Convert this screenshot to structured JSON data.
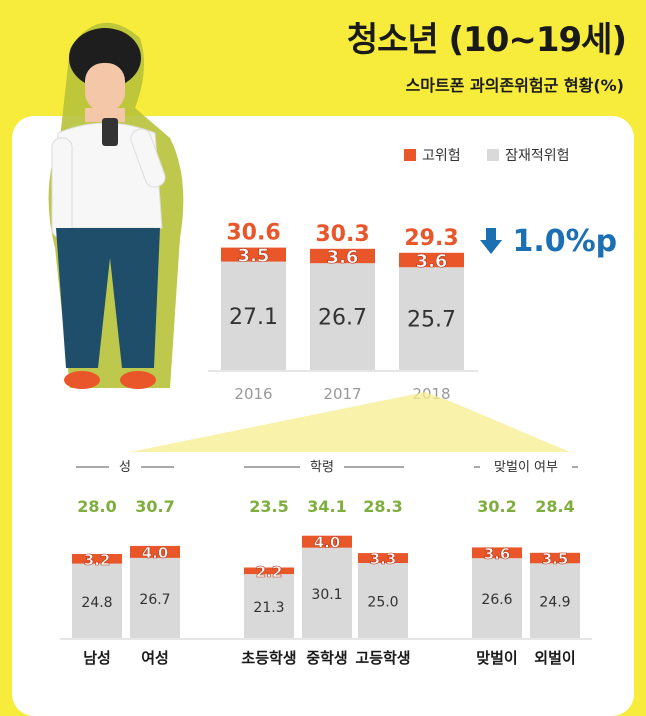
{
  "header": {
    "title": "청소년 (10~19세)",
    "subtitle": "스마트폰 과의존위험군 현황(%)"
  },
  "legend": {
    "items": [
      {
        "label": "고위험",
        "color": "#E8562A"
      },
      {
        "label": "잠재적위험",
        "color": "#D9D9D9"
      }
    ]
  },
  "trend": {
    "label": "1.0%p",
    "direction": "down",
    "color": "#1B6FB3"
  },
  "colors": {
    "high": "#E8562A",
    "potential": "#D9D9D9",
    "total": "#7FAE3E",
    "yearTotal": "#E8562A"
  },
  "chart_data": [
    {
      "type": "bar",
      "stacked": true,
      "categories": [
        "2016",
        "2017",
        "2018"
      ],
      "series": [
        {
          "name": "잠재적위험",
          "values": [
            27.1,
            26.7,
            25.7
          ]
        },
        {
          "name": "고위험",
          "values": [
            3.5,
            3.6,
            3.6
          ]
        }
      ],
      "totals": [
        30.6,
        30.3,
        29.3
      ]
    },
    {
      "type": "bar",
      "stacked": true,
      "groups": [
        {
          "label": "성",
          "categories": [
            "남성",
            "여성"
          ],
          "potential": [
            24.8,
            26.7
          ],
          "high": [
            3.2,
            4.0
          ],
          "totals": [
            28.0,
            30.7
          ]
        },
        {
          "label": "학령",
          "categories": [
            "초등학생",
            "중학생",
            "고등학생"
          ],
          "potential": [
            21.3,
            30.1,
            25.0
          ],
          "high": [
            2.2,
            4.0,
            3.3
          ],
          "totals": [
            23.5,
            34.1,
            28.3
          ]
        },
        {
          "label": "맞벌이 여부",
          "categories": [
            "맞벌이",
            "외벌이"
          ],
          "potential": [
            26.6,
            24.9
          ],
          "high": [
            3.6,
            3.5
          ],
          "totals": [
            30.2,
            28.4
          ]
        }
      ]
    }
  ]
}
